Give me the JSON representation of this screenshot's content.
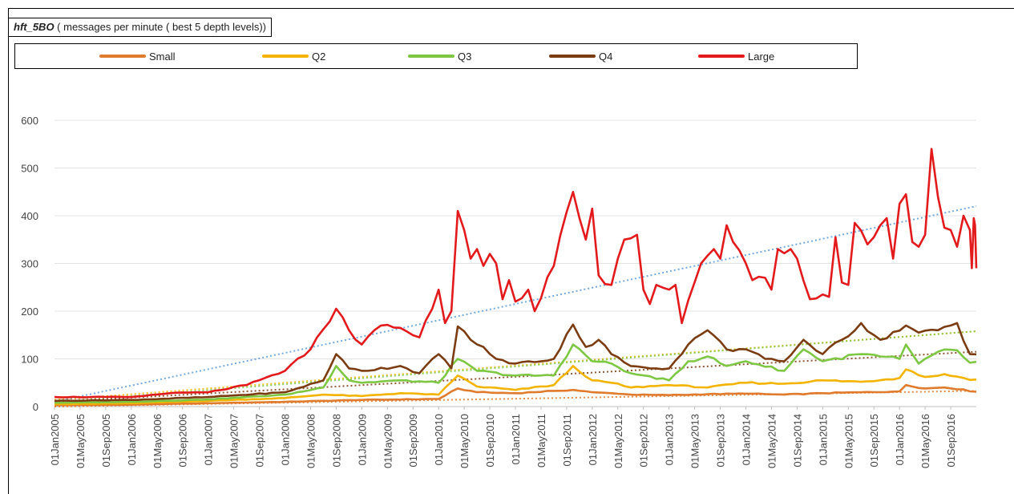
{
  "title": {
    "name": "hft_5BO",
    "rest": " ( messages per minute ( best 5 depth levels))"
  },
  "chart_data": {
    "type": "line",
    "ylim": [
      0,
      600
    ],
    "yticks": [
      0,
      100,
      200,
      300,
      400,
      500,
      600
    ],
    "grid": "horizontal",
    "legend_position": "top",
    "x_tick_labels": [
      "01Jan2005",
      "01May2005",
      "01Sep2005",
      "01Jan2006",
      "01May2006",
      "01Sep2006",
      "01Jan2007",
      "01May2007",
      "01Sep2007",
      "01Jan2008",
      "01May2008",
      "01Sep2008",
      "01Jan2009",
      "01May2009",
      "01Sep2009",
      "01Jan2010",
      "01May2010",
      "01Sep2010",
      "01Jan2011",
      "01May2011",
      "01Sep2011",
      "01Jan2012",
      "01May2012",
      "01Sep2012",
      "01Jan2013",
      "01May2013",
      "01Sep2013",
      "01Jan2014",
      "01May2014",
      "01Sep2014",
      "01Jan2015",
      "01May2015",
      "01Sep2015",
      "01Jan2016",
      "01May2016",
      "01Sep2016"
    ],
    "x_months": 144,
    "series": [
      {
        "name": "Small",
        "color": "#e07a2c",
        "anchors": [
          [
            0,
            3
          ],
          [
            12,
            4
          ],
          [
            24,
            7
          ],
          [
            36,
            10
          ],
          [
            48,
            14
          ],
          [
            60,
            16
          ],
          [
            63,
            38
          ],
          [
            66,
            30
          ],
          [
            72,
            28
          ],
          [
            78,
            33
          ],
          [
            81,
            35
          ],
          [
            84,
            30
          ],
          [
            87,
            28
          ],
          [
            90,
            25
          ],
          [
            96,
            24
          ],
          [
            102,
            26
          ],
          [
            108,
            27
          ],
          [
            114,
            25
          ],
          [
            120,
            28
          ],
          [
            126,
            30
          ],
          [
            132,
            32
          ],
          [
            133,
            45
          ],
          [
            136,
            38
          ],
          [
            139,
            40
          ],
          [
            142,
            36
          ],
          [
            143,
            32
          ]
        ],
        "trend": [
          0,
          33
        ]
      },
      {
        "name": "Q2",
        "color": "#f2b400",
        "anchors": [
          [
            0,
            5
          ],
          [
            12,
            7
          ],
          [
            24,
            12
          ],
          [
            36,
            18
          ],
          [
            42,
            25
          ],
          [
            48,
            22
          ],
          [
            54,
            28
          ],
          [
            60,
            25
          ],
          [
            63,
            65
          ],
          [
            66,
            42
          ],
          [
            72,
            35
          ],
          [
            78,
            45
          ],
          [
            81,
            85
          ],
          [
            84,
            55
          ],
          [
            87,
            50
          ],
          [
            90,
            40
          ],
          [
            96,
            45
          ],
          [
            102,
            40
          ],
          [
            108,
            50
          ],
          [
            114,
            48
          ],
          [
            120,
            55
          ],
          [
            126,
            52
          ],
          [
            132,
            60
          ],
          [
            133,
            78
          ],
          [
            136,
            62
          ],
          [
            139,
            68
          ],
          [
            142,
            60
          ],
          [
            143,
            56
          ]
        ],
        "trend": [
          14,
          158
        ]
      },
      {
        "name": "Q3",
        "color": "#7dc743",
        "anchors": [
          [
            0,
            8
          ],
          [
            12,
            10
          ],
          [
            24,
            15
          ],
          [
            36,
            25
          ],
          [
            42,
            40
          ],
          [
            44,
            85
          ],
          [
            46,
            55
          ],
          [
            48,
            50
          ],
          [
            54,
            55
          ],
          [
            60,
            50
          ],
          [
            63,
            100
          ],
          [
            66,
            75
          ],
          [
            72,
            65
          ],
          [
            78,
            65
          ],
          [
            81,
            130
          ],
          [
            84,
            95
          ],
          [
            87,
            90
          ],
          [
            90,
            70
          ],
          [
            96,
            55
          ],
          [
            99,
            95
          ],
          [
            102,
            105
          ],
          [
            105,
            85
          ],
          [
            108,
            95
          ],
          [
            114,
            75
          ],
          [
            117,
            120
          ],
          [
            120,
            95
          ],
          [
            126,
            110
          ],
          [
            129,
            105
          ],
          [
            132,
            100
          ],
          [
            133,
            130
          ],
          [
            135,
            90
          ],
          [
            138,
            115
          ],
          [
            141,
            118
          ],
          [
            143,
            92
          ]
        ],
        "trend": [
          10,
          158
        ]
      },
      {
        "name": "Q4",
        "color": "#7b3c12",
        "anchors": [
          [
            0,
            12
          ],
          [
            12,
            14
          ],
          [
            24,
            20
          ],
          [
            36,
            30
          ],
          [
            42,
            55
          ],
          [
            44,
            110
          ],
          [
            46,
            80
          ],
          [
            48,
            75
          ],
          [
            54,
            85
          ],
          [
            57,
            70
          ],
          [
            60,
            110
          ],
          [
            62,
            80
          ],
          [
            63,
            168
          ],
          [
            65,
            140
          ],
          [
            67,
            125
          ],
          [
            69,
            100
          ],
          [
            72,
            90
          ],
          [
            78,
            100
          ],
          [
            81,
            172
          ],
          [
            83,
            125
          ],
          [
            85,
            140
          ],
          [
            87,
            110
          ],
          [
            90,
            85
          ],
          [
            96,
            80
          ],
          [
            99,
            130
          ],
          [
            102,
            160
          ],
          [
            105,
            120
          ],
          [
            108,
            120
          ],
          [
            111,
            100
          ],
          [
            114,
            95
          ],
          [
            117,
            140
          ],
          [
            120,
            110
          ],
          [
            123,
            140
          ],
          [
            126,
            175
          ],
          [
            129,
            140
          ],
          [
            133,
            170
          ],
          [
            135,
            155
          ],
          [
            138,
            160
          ],
          [
            141,
            175
          ],
          [
            143,
            110
          ]
        ],
        "trend": [
          10,
          115
        ]
      },
      {
        "name": "Large",
        "color": "#e31a1c",
        "anchors": [
          [
            0,
            20
          ],
          [
            12,
            20
          ],
          [
            18,
            28
          ],
          [
            24,
            30
          ],
          [
            30,
            45
          ],
          [
            36,
            75
          ],
          [
            40,
            120
          ],
          [
            44,
            205
          ],
          [
            46,
            160
          ],
          [
            48,
            130
          ],
          [
            51,
            170
          ],
          [
            54,
            165
          ],
          [
            57,
            145
          ],
          [
            60,
            245
          ],
          [
            61,
            175
          ],
          [
            62,
            200
          ],
          [
            63,
            410
          ],
          [
            64,
            370
          ],
          [
            65,
            310
          ],
          [
            66,
            330
          ],
          [
            67,
            295
          ],
          [
            68,
            320
          ],
          [
            69,
            300
          ],
          [
            70,
            225
          ],
          [
            71,
            265
          ],
          [
            72,
            220
          ],
          [
            74,
            245
          ],
          [
            75,
            200
          ],
          [
            78,
            295
          ],
          [
            81,
            450
          ],
          [
            82,
            395
          ],
          [
            83,
            350
          ],
          [
            84,
            415
          ],
          [
            85,
            275
          ],
          [
            87,
            255
          ],
          [
            89,
            350
          ],
          [
            91,
            360
          ],
          [
            92,
            245
          ],
          [
            93,
            215
          ],
          [
            94,
            255
          ],
          [
            96,
            245
          ],
          [
            97,
            255
          ],
          [
            98,
            175
          ],
          [
            101,
            300
          ],
          [
            103,
            330
          ],
          [
            104,
            310
          ],
          [
            105,
            380
          ],
          [
            106,
            345
          ],
          [
            108,
            300
          ],
          [
            109,
            265
          ],
          [
            111,
            270
          ],
          [
            112,
            245
          ],
          [
            113,
            330
          ],
          [
            115,
            330
          ],
          [
            116,
            310
          ],
          [
            118,
            225
          ],
          [
            120,
            235
          ],
          [
            121,
            230
          ],
          [
            122,
            355
          ],
          [
            123,
            260
          ],
          [
            124,
            255
          ],
          [
            125,
            385
          ],
          [
            127,
            340
          ],
          [
            128,
            355
          ],
          [
            129,
            380
          ],
          [
            130,
            395
          ],
          [
            131,
            310
          ],
          [
            132,
            425
          ],
          [
            133,
            445
          ],
          [
            134,
            345
          ],
          [
            135,
            335
          ],
          [
            136,
            360
          ],
          [
            137,
            540
          ],
          [
            138,
            440
          ],
          [
            139,
            375
          ],
          [
            140,
            370
          ],
          [
            141,
            335
          ],
          [
            142,
            400
          ],
          [
            143,
            370
          ],
          [
            143.3,
            290
          ],
          [
            143.6,
            395
          ],
          [
            143.8,
            380
          ],
          [
            144,
            290
          ]
        ],
        "trend": [
          10,
          420
        ]
      }
    ]
  }
}
